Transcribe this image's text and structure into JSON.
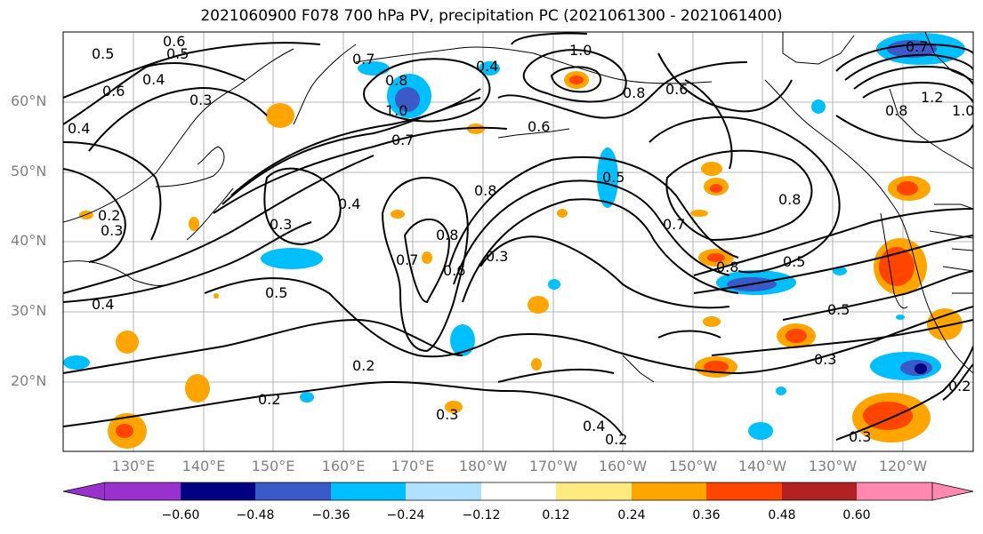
{
  "title": "2021060900 F078 700 hPa PV, precipitation PC (2021061300 - 2021061400)",
  "latitude_labels": [
    "60°N",
    "50°N",
    "40°N",
    "30°N",
    "20°N"
  ],
  "longitude_labels": [
    "130°E",
    "140°E",
    "150°E",
    "160°E",
    "170°E",
    "180°W",
    "170°W",
    "160°W",
    "150°W",
    "140°W",
    "130°W",
    "120°W"
  ],
  "colorbar": {
    "ticks": [
      "−0.60",
      "−0.48",
      "−0.36",
      "−0.24",
      "−0.12",
      "0.12",
      "0.24",
      "0.36",
      "0.48",
      "0.60"
    ],
    "colors": [
      "#9932cc",
      "#000080",
      "#3a5bc7",
      "#00bfff",
      "#b0e2ff",
      "#ffffff",
      "#ffea80",
      "#ffa500",
      "#ff4500",
      "#b22222",
      "#ff88b0"
    ]
  },
  "contour_labels": [
    "0.5",
    "0.6",
    "0.5",
    "0.4",
    "0.6",
    "0.3",
    "0.4",
    "0.2",
    "0.3",
    "0.4",
    "0.3",
    "0.5",
    "0.4",
    "0.7",
    "0.8",
    "1.0",
    "0.7",
    "0.4",
    "0.8",
    "0.7",
    "0.8",
    "0.6",
    "0.3",
    "0.2",
    "0.3",
    "0.4",
    "0.2",
    "1.0",
    "0.8",
    "0.6",
    "0.5",
    "0.6",
    "0.8",
    "0.7",
    "0.8",
    "0.5",
    "0.5",
    "0.3",
    "0.2",
    "0.3",
    "0.7",
    "0.8",
    "1.2",
    "1.0",
    "0.2"
  ],
  "colors": {
    "contour": "#000000",
    "grid": "#808080",
    "coast": "#000000",
    "axis_label": "#808080"
  }
}
